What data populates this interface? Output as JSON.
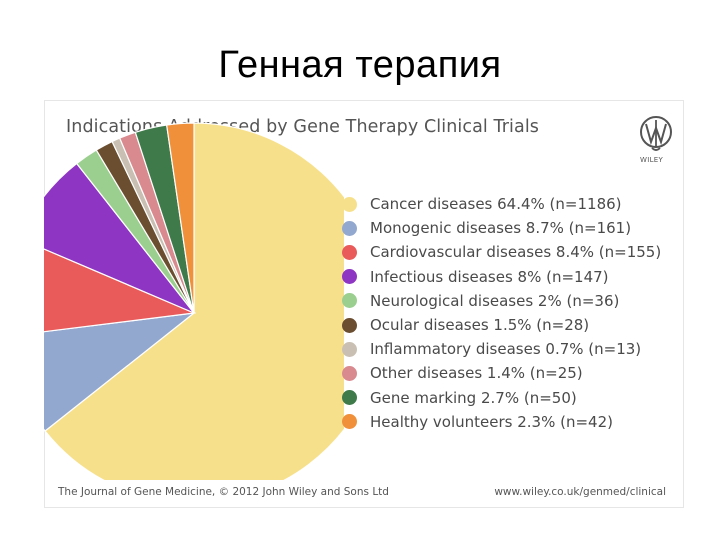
{
  "slide": {
    "title": "Генная терапия"
  },
  "figure": {
    "logo_text": "WILEY",
    "footer_left": "The Journal of Gene Medicine, © 2012 John Wiley and Sons Ltd",
    "footer_right": "www.wiley.co.uk/genmed/clinical"
  },
  "chart_data": {
    "type": "pie",
    "title": "Indications Addressed by Gene Therapy Clinical Trials",
    "legend_position": "right",
    "slices": [
      {
        "label": "Cancer diseases 64.4% (n=1186)",
        "name": "Cancer diseases",
        "percent": 64.4,
        "n": 1186,
        "color": "#f7e08c"
      },
      {
        "label": "Monogenic diseases 8.7% (n=161)",
        "name": "Monogenic diseases",
        "percent": 8.7,
        "n": 161,
        "color": "#93a8cf"
      },
      {
        "label": "Cardiovascular diseases 8.4% (n=155)",
        "name": "Cardiovascular diseases",
        "percent": 8.4,
        "n": 155,
        "color": "#e95b5b"
      },
      {
        "label": "Infectious diseases 8% (n=147)",
        "name": "Infectious diseases",
        "percent": 8.0,
        "n": 147,
        "color": "#8e35c4"
      },
      {
        "label": "Neurological diseases 2% (n=36)",
        "name": "Neurological diseases",
        "percent": 2.0,
        "n": 36,
        "color": "#9bcf8f"
      },
      {
        "label": "Ocular diseases 1.5% (n=28)",
        "name": "Ocular diseases",
        "percent": 1.5,
        "n": 28,
        "color": "#6b4e30"
      },
      {
        "label": "Inflammatory diseases 0.7% (n=13)",
        "name": "Inflammatory diseases",
        "percent": 0.7,
        "n": 13,
        "color": "#c9c0b3"
      },
      {
        "label": "Other diseases 1.4% (n=25)",
        "name": "Other diseases",
        "percent": 1.4,
        "n": 25,
        "color": "#d98a8f"
      },
      {
        "label": "Gene marking 2.7% (n=50)",
        "name": "Gene marking",
        "percent": 2.7,
        "n": 50,
        "color": "#3f7a4a"
      },
      {
        "label": "Healthy volunteers 2.3% (n=42)",
        "name": "Healthy volunteers",
        "percent": 2.3,
        "n": 42,
        "color": "#f0903a"
      }
    ]
  }
}
